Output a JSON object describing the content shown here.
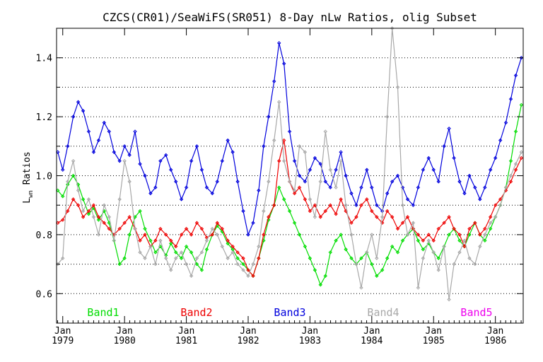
{
  "chart_data": {
    "type": "line",
    "title": "CZCS(CR01)/SeaWiFS(SR051) 8-Day nLw Ratios, olig Subset",
    "ylabel_main": "L",
    "ylabel_sub": "wn",
    "ylabel_rest": " Ratios",
    "xlabel": "",
    "ylim": [
      0.5,
      1.5
    ],
    "xlim": [
      1978.9,
      1986.45
    ],
    "grid": "horizontal-dotted",
    "yticks": [
      0.6,
      0.8,
      1.0,
      1.2,
      1.4
    ],
    "yticklabels": [
      "0.6",
      "0.8",
      "1.0",
      "1.2",
      "1.4"
    ],
    "yminor": [
      0.5,
      0.7,
      0.9,
      1.1,
      1.3,
      1.5
    ],
    "xticks": [
      1979,
      1980,
      1981,
      1982,
      1983,
      1984,
      1985,
      1986
    ],
    "xticklabels_month": [
      "Jan",
      "Jan",
      "Jan",
      "Jan",
      "Jan",
      "Jan",
      "Jan",
      "Jan"
    ],
    "xticklabels_year": [
      "1979",
      "1980",
      "1981",
      "1982",
      "1983",
      "1984",
      "1985",
      "1986"
    ],
    "legend_position": "bottom-inside",
    "series": [
      {
        "name": "Band1",
        "color": "#00dd00",
        "x": [
          1978.92,
          1979.0,
          1979.08,
          1979.17,
          1979.25,
          1979.33,
          1979.42,
          1979.5,
          1979.58,
          1979.67,
          1979.75,
          1979.83,
          1979.92,
          1980.0,
          1980.08,
          1980.17,
          1980.25,
          1980.33,
          1980.42,
          1980.5,
          1980.58,
          1980.67,
          1980.75,
          1980.83,
          1980.92,
          1981.0,
          1981.08,
          1981.17,
          1981.25,
          1981.33,
          1981.42,
          1981.5,
          1981.58,
          1981.67,
          1981.75,
          1981.83,
          1981.92,
          1982.0,
          1982.08,
          1982.17,
          1982.25,
          1982.33,
          1982.42,
          1982.5,
          1982.58,
          1982.67,
          1982.75,
          1982.83,
          1982.92,
          1983.0,
          1983.08,
          1983.17,
          1983.25,
          1983.33,
          1983.42,
          1983.5,
          1983.58,
          1983.67,
          1983.75,
          1983.83,
          1983.92,
          1984.0,
          1984.08,
          1984.17,
          1984.25,
          1984.33,
          1984.42,
          1984.5,
          1984.58,
          1984.67,
          1984.75,
          1984.83,
          1984.92,
          1985.0,
          1985.08,
          1985.17,
          1985.25,
          1985.33,
          1985.42,
          1985.5,
          1985.58,
          1985.67,
          1985.75,
          1985.83,
          1985.92,
          1986.0,
          1986.08,
          1986.17,
          1986.25,
          1986.33,
          1986.42
        ],
        "y": [
          0.95,
          0.93,
          0.97,
          1.0,
          0.97,
          0.92,
          0.87,
          0.89,
          0.85,
          0.88,
          0.84,
          0.78,
          0.7,
          0.72,
          0.8,
          0.86,
          0.88,
          0.82,
          0.78,
          0.74,
          0.76,
          0.73,
          0.77,
          0.74,
          0.72,
          0.76,
          0.74,
          0.7,
          0.68,
          0.75,
          0.8,
          0.83,
          0.81,
          0.77,
          0.75,
          0.72,
          0.7,
          0.68,
          0.66,
          0.72,
          0.78,
          0.85,
          0.9,
          0.96,
          0.92,
          0.88,
          0.84,
          0.8,
          0.76,
          0.72,
          0.68,
          0.63,
          0.66,
          0.74,
          0.78,
          0.8,
          0.75,
          0.72,
          0.7,
          0.72,
          0.74,
          0.7,
          0.66,
          0.68,
          0.72,
          0.76,
          0.74,
          0.78,
          0.8,
          0.82,
          0.78,
          0.75,
          0.77,
          0.74,
          0.72,
          0.76,
          0.8,
          0.82,
          0.78,
          0.76,
          0.8,
          0.84,
          0.8,
          0.78,
          0.82,
          0.86,
          0.9,
          0.96,
          1.05,
          1.15,
          1.24
        ]
      },
      {
        "name": "Band2",
        "color": "#ee0000",
        "x": [
          1978.92,
          1979.0,
          1979.08,
          1979.17,
          1979.25,
          1979.33,
          1979.42,
          1979.5,
          1979.58,
          1979.67,
          1979.75,
          1979.83,
          1979.92,
          1980.0,
          1980.08,
          1980.17,
          1980.25,
          1980.33,
          1980.42,
          1980.5,
          1980.58,
          1980.67,
          1980.75,
          1980.83,
          1980.92,
          1981.0,
          1981.08,
          1981.17,
          1981.25,
          1981.33,
          1981.42,
          1981.5,
          1981.58,
          1981.67,
          1981.75,
          1981.83,
          1981.92,
          1982.0,
          1982.08,
          1982.17,
          1982.25,
          1982.33,
          1982.42,
          1982.5,
          1982.58,
          1982.67,
          1982.75,
          1982.83,
          1982.92,
          1983.0,
          1983.08,
          1983.17,
          1983.25,
          1983.33,
          1983.42,
          1983.5,
          1983.58,
          1983.67,
          1983.75,
          1983.83,
          1983.92,
          1984.0,
          1984.08,
          1984.17,
          1984.25,
          1984.33,
          1984.42,
          1984.5,
          1984.58,
          1984.67,
          1984.75,
          1984.83,
          1984.92,
          1985.0,
          1985.08,
          1985.17,
          1985.25,
          1985.33,
          1985.42,
          1985.5,
          1985.58,
          1985.67,
          1985.75,
          1985.83,
          1985.92,
          1986.0,
          1986.08,
          1986.17,
          1986.25,
          1986.33,
          1986.42
        ],
        "y": [
          0.84,
          0.85,
          0.88,
          0.92,
          0.9,
          0.86,
          0.88,
          0.9,
          0.86,
          0.84,
          0.82,
          0.8,
          0.82,
          0.84,
          0.86,
          0.82,
          0.78,
          0.8,
          0.76,
          0.78,
          0.82,
          0.8,
          0.78,
          0.76,
          0.8,
          0.82,
          0.8,
          0.84,
          0.82,
          0.79,
          0.8,
          0.84,
          0.82,
          0.78,
          0.76,
          0.74,
          0.72,
          0.68,
          0.66,
          0.72,
          0.8,
          0.86,
          0.9,
          1.05,
          1.12,
          0.98,
          0.94,
          0.96,
          0.92,
          0.88,
          0.9,
          0.86,
          0.88,
          0.9,
          0.87,
          0.92,
          0.88,
          0.84,
          0.86,
          0.9,
          0.92,
          0.88,
          0.86,
          0.84,
          0.88,
          0.86,
          0.82,
          0.84,
          0.86,
          0.82,
          0.8,
          0.78,
          0.8,
          0.78,
          0.82,
          0.84,
          0.86,
          0.82,
          0.8,
          0.76,
          0.82,
          0.84,
          0.8,
          0.82,
          0.86,
          0.9,
          0.92,
          0.95,
          0.98,
          1.02,
          1.06
        ]
      },
      {
        "name": "Band3",
        "color": "#0000dd",
        "x": [
          1978.92,
          1979.0,
          1979.08,
          1979.17,
          1979.25,
          1979.33,
          1979.42,
          1979.5,
          1979.58,
          1979.67,
          1979.75,
          1979.83,
          1979.92,
          1980.0,
          1980.08,
          1980.17,
          1980.25,
          1980.33,
          1980.42,
          1980.5,
          1980.58,
          1980.67,
          1980.75,
          1980.83,
          1980.92,
          1981.0,
          1981.08,
          1981.17,
          1981.25,
          1981.33,
          1981.42,
          1981.5,
          1981.58,
          1981.67,
          1981.75,
          1981.83,
          1981.92,
          1982.0,
          1982.08,
          1982.17,
          1982.25,
          1982.33,
          1982.42,
          1982.5,
          1982.58,
          1982.67,
          1982.75,
          1982.83,
          1982.92,
          1983.0,
          1983.08,
          1983.17,
          1983.25,
          1983.33,
          1983.42,
          1983.5,
          1983.58,
          1983.67,
          1983.75,
          1983.83,
          1983.92,
          1984.0,
          1984.08,
          1984.17,
          1984.25,
          1984.33,
          1984.42,
          1984.5,
          1984.58,
          1984.67,
          1984.75,
          1984.83,
          1984.92,
          1985.0,
          1985.08,
          1985.17,
          1985.25,
          1985.33,
          1985.42,
          1985.5,
          1985.58,
          1985.67,
          1985.75,
          1985.83,
          1985.92,
          1986.0,
          1986.08,
          1986.17,
          1986.25,
          1986.33,
          1986.42
        ],
        "y": [
          1.08,
          1.02,
          1.1,
          1.2,
          1.25,
          1.22,
          1.15,
          1.08,
          1.12,
          1.18,
          1.15,
          1.08,
          1.05,
          1.1,
          1.07,
          1.15,
          1.04,
          1.0,
          0.94,
          0.96,
          1.05,
          1.07,
          1.02,
          0.98,
          0.92,
          0.96,
          1.05,
          1.1,
          1.02,
          0.96,
          0.94,
          0.98,
          1.05,
          1.12,
          1.08,
          0.98,
          0.88,
          0.8,
          0.84,
          0.95,
          1.1,
          1.2,
          1.32,
          1.45,
          1.38,
          1.15,
          1.05,
          1.0,
          0.98,
          1.02,
          1.06,
          1.04,
          0.98,
          0.96,
          1.02,
          1.08,
          1.0,
          0.94,
          0.9,
          0.96,
          1.02,
          0.96,
          0.9,
          0.88,
          0.94,
          0.98,
          1.0,
          0.96,
          0.92,
          0.9,
          0.96,
          1.02,
          1.06,
          1.02,
          0.98,
          1.1,
          1.16,
          1.06,
          0.98,
          0.94,
          1.0,
          0.96,
          0.92,
          0.96,
          1.02,
          1.06,
          1.12,
          1.18,
          1.26,
          1.34,
          1.4
        ]
      },
      {
        "name": "Band4",
        "color": "#a8a8a8",
        "x": [
          1978.92,
          1979.0,
          1979.08,
          1979.17,
          1979.25,
          1979.33,
          1979.42,
          1979.5,
          1979.58,
          1979.67,
          1979.75,
          1979.83,
          1979.92,
          1980.0,
          1980.08,
          1980.17,
          1980.25,
          1980.33,
          1980.42,
          1980.5,
          1980.58,
          1980.67,
          1980.75,
          1980.83,
          1980.92,
          1981.0,
          1981.08,
          1981.17,
          1981.25,
          1981.33,
          1981.42,
          1981.5,
          1981.58,
          1981.67,
          1981.75,
          1981.83,
          1981.92,
          1982.0,
          1982.08,
          1982.17,
          1982.25,
          1982.33,
          1982.42,
          1982.5,
          1982.58,
          1982.67,
          1982.75,
          1982.83,
          1982.92,
          1983.0,
          1983.08,
          1983.17,
          1983.25,
          1983.33,
          1983.42,
          1983.5,
          1983.58,
          1983.67,
          1983.75,
          1983.83,
          1983.92,
          1984.0,
          1984.08,
          1984.17,
          1984.25,
          1984.33,
          1984.42,
          1984.5,
          1984.58,
          1984.67,
          1984.75,
          1984.83,
          1984.92,
          1985.0,
          1985.08,
          1985.17,
          1985.25,
          1985.33,
          1985.42,
          1985.5,
          1985.58,
          1985.67,
          1985.75,
          1985.83,
          1985.92,
          1986.0,
          1986.08,
          1986.17,
          1986.25,
          1986.33,
          1986.42
        ],
        "y": [
          0.7,
          0.72,
          0.98,
          1.05,
          0.95,
          0.88,
          0.92,
          0.86,
          0.8,
          0.9,
          0.86,
          0.78,
          0.92,
          1.05,
          0.98,
          0.82,
          0.74,
          0.72,
          0.76,
          0.7,
          0.78,
          0.72,
          0.68,
          0.72,
          0.74,
          0.7,
          0.66,
          0.72,
          0.74,
          0.78,
          0.82,
          0.8,
          0.76,
          0.72,
          0.74,
          0.7,
          0.68,
          0.66,
          0.7,
          0.76,
          0.88,
          0.98,
          1.12,
          1.25,
          1.05,
          0.98,
          0.95,
          1.1,
          1.08,
          0.92,
          0.86,
          0.98,
          1.15,
          1.02,
          0.96,
          1.05,
          0.9,
          0.8,
          0.7,
          0.62,
          0.74,
          0.8,
          0.72,
          0.86,
          1.2,
          1.5,
          1.3,
          0.9,
          0.8,
          0.84,
          0.62,
          0.72,
          0.78,
          0.74,
          0.68,
          0.76,
          0.58,
          0.7,
          0.74,
          0.78,
          0.72,
          0.7,
          0.76,
          0.8,
          0.84,
          0.86,
          0.9,
          0.96,
          1.0,
          1.04,
          1.08
        ]
      },
      {
        "name": "Band5",
        "color": "#ee00ee",
        "x": [],
        "y": []
      }
    ]
  }
}
